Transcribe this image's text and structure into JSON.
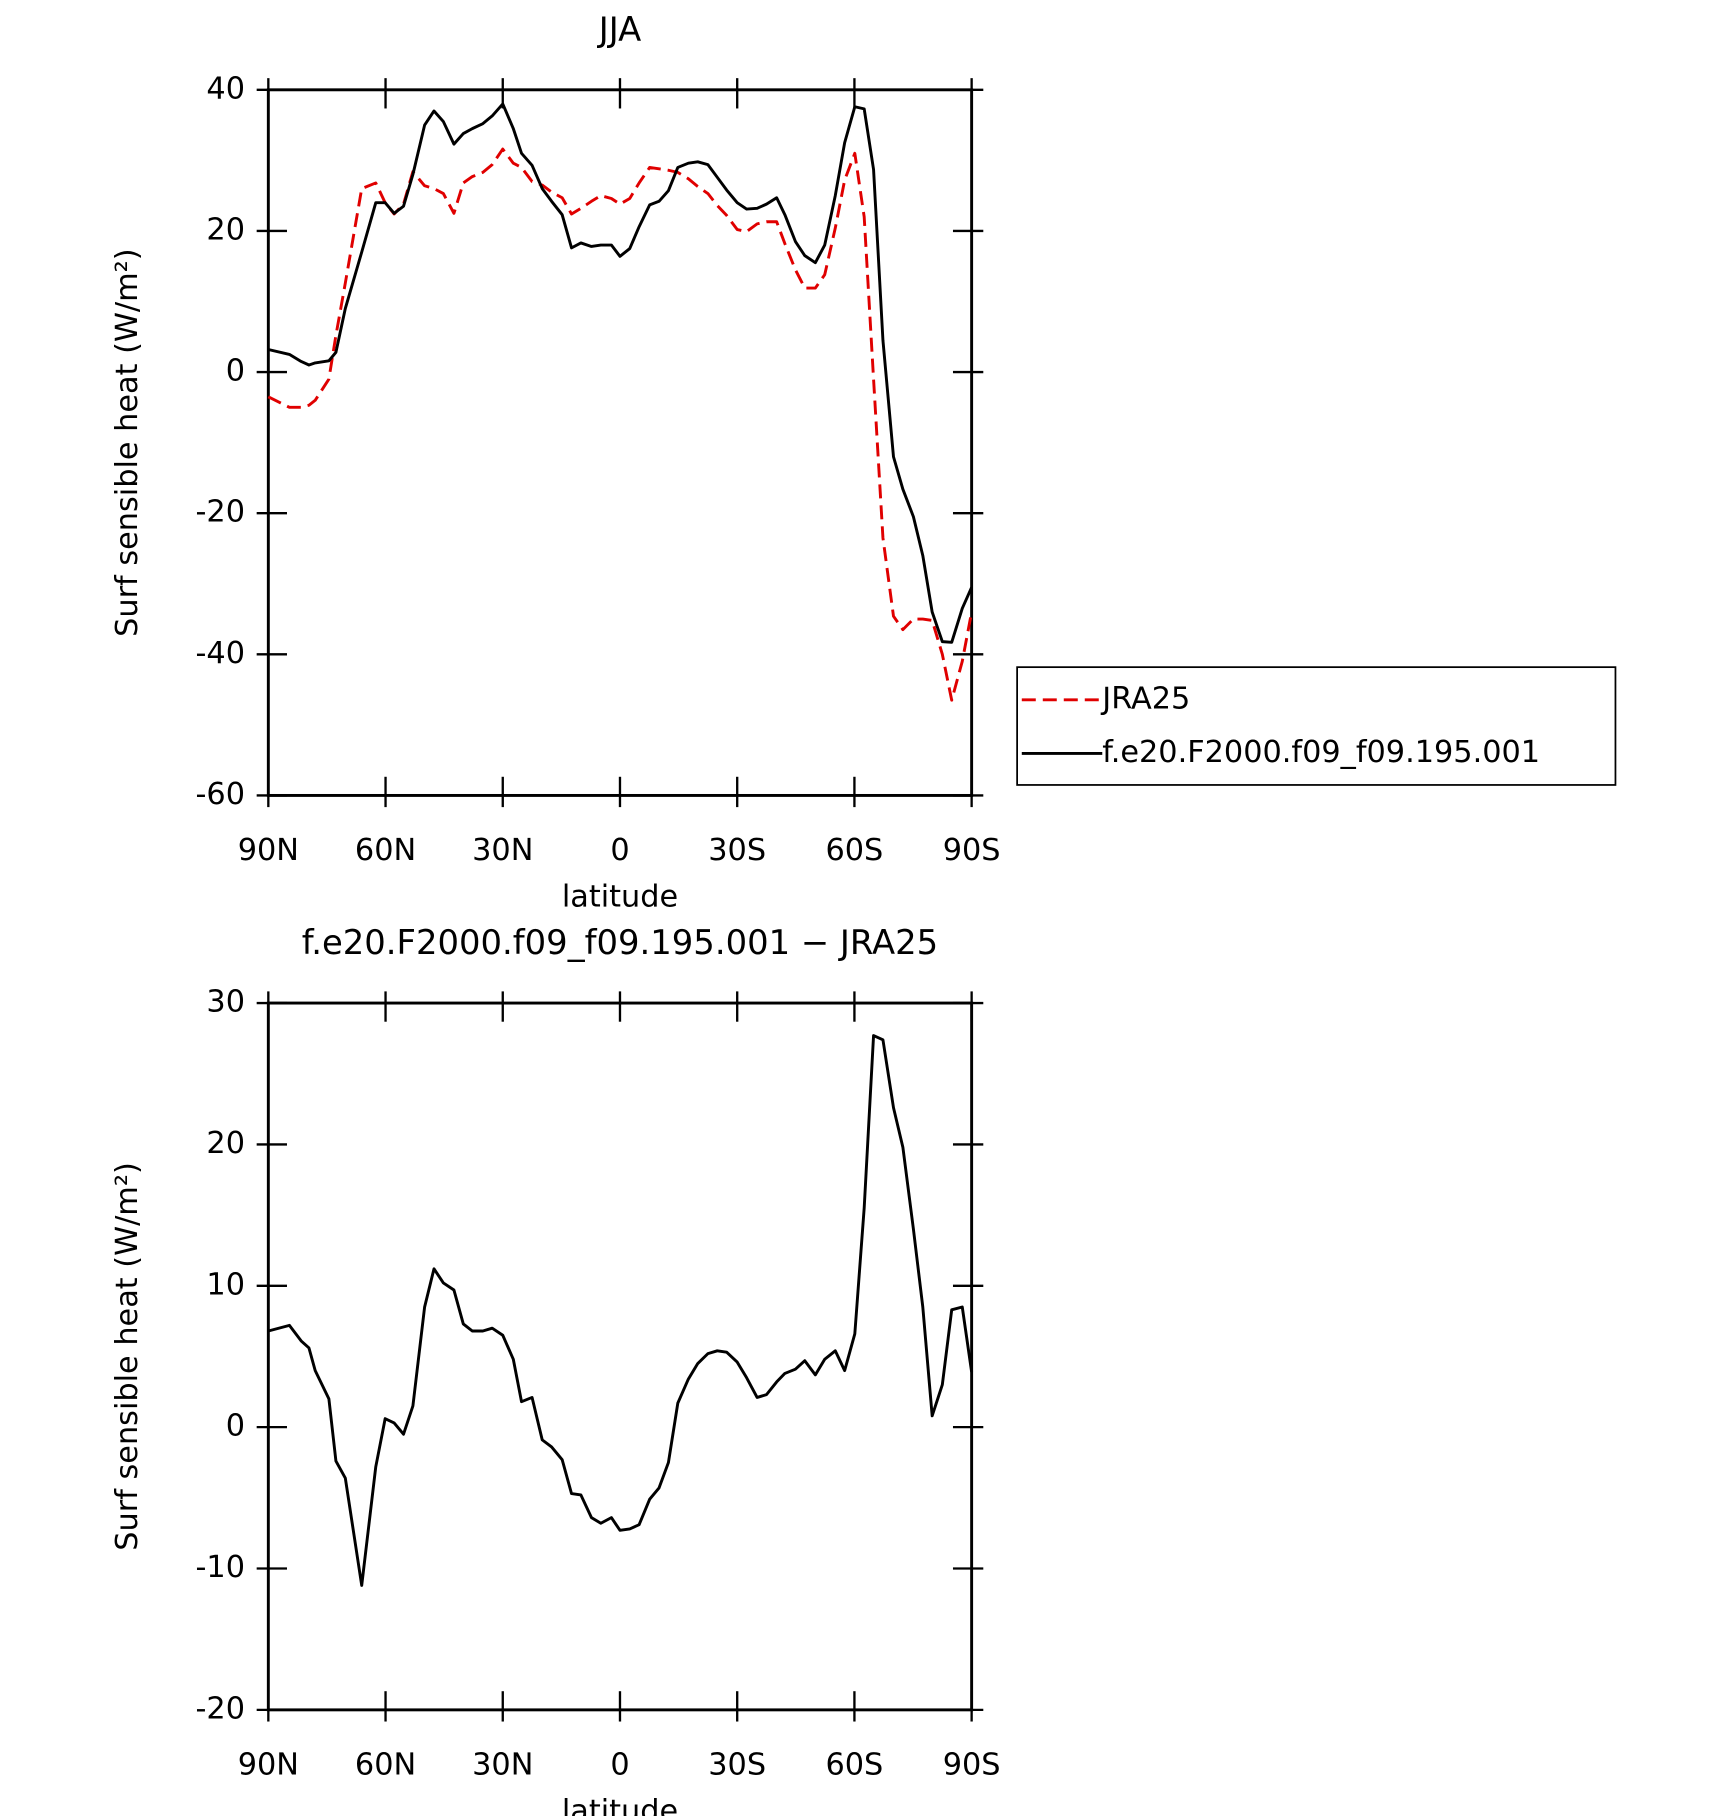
{
  "chart_data": [
    {
      "type": "line",
      "title": "JJA",
      "xlabel": "latitude",
      "ylabel": "Surf sensible heat (W/m²)",
      "x": [
        90,
        84.6,
        81.6,
        79.6,
        78,
        74.5,
        72.7,
        70.3,
        66.1,
        62.5,
        60.1,
        57.8,
        55.4,
        53,
        50,
        47.6,
        45.2,
        42.5,
        40.1,
        37.8,
        35.1,
        32.7,
        30,
        27.3,
        25.2,
        22.5,
        19.9,
        17.5,
        14.8,
        12.4,
        10,
        7.3,
        4.9,
        2.2,
        0,
        -2.5,
        -4.9,
        -7.6,
        -10,
        -12.4,
        -14.8,
        -17.5,
        -19.9,
        -22.5,
        -24.9,
        -27.3,
        -30,
        -32.4,
        -35.1,
        -37.5,
        -40.1,
        -42.2,
        -44.9,
        -47.3,
        -50,
        -52.4,
        -55.1,
        -57.5,
        -60.1,
        -62.5,
        -64.9,
        -67.3,
        -70,
        -72.4,
        -75.1,
        -77.5,
        -79.9,
        -82.5,
        -84.9,
        -87.6,
        -90
      ],
      "series": [
        {
          "name": "JRA25",
          "color": "#e00000",
          "dash": "dashed",
          "values": [
            -3.5,
            -5,
            -5,
            -4.7,
            -4,
            -1,
            5.2,
            12.6,
            26,
            26.8,
            24,
            22.4,
            23.8,
            28.4,
            26.4,
            26,
            25.3,
            22.5,
            26.8,
            27.7,
            28.3,
            29.4,
            31.6,
            29.6,
            29,
            27,
            26.5,
            25.5,
            24.7,
            22.4,
            23.2,
            24.2,
            25,
            24.6,
            23.8,
            24.6,
            26.8,
            29,
            28.8,
            28.6,
            28.3,
            27.4,
            26.3,
            25.3,
            23.6,
            22.2,
            20.2,
            19.9,
            21,
            21.3,
            21.3,
            18.2,
            14.5,
            11.9,
            11.9,
            13.8,
            20.4,
            27.2,
            31,
            22,
            -1,
            -23.5,
            -34.6,
            -36.5,
            -35,
            -35,
            -35.2,
            -40,
            -46.5,
            -41,
            -34
          ]
        },
        {
          "name": "f.e20.F2000.f09_f09.195.001",
          "color": "#000000",
          "dash": "solid",
          "values": [
            3.2,
            2.5,
            1.5,
            1,
            1.3,
            1.6,
            2.8,
            9,
            17,
            24,
            24,
            22.5,
            23.5,
            28,
            35,
            37,
            35.5,
            32.3,
            33.8,
            34.5,
            35.2,
            36.3,
            38,
            34.5,
            31,
            29.3,
            26,
            24.2,
            22.3,
            17.6,
            18.3,
            17.8,
            18,
            18,
            16.4,
            17.5,
            20.6,
            23.7,
            24.2,
            25.7,
            29,
            29.6,
            29.8,
            29.4,
            27.6,
            25.8,
            24,
            23.1,
            23.2,
            23.8,
            24.7,
            22.3,
            18.5,
            16.5,
            15.5,
            18,
            25,
            32.5,
            37.6,
            37.3,
            28.7,
            4.5,
            -12,
            -16.6,
            -20.5,
            -26,
            -34,
            -38.2,
            -38.3,
            -33.5,
            -30.5
          ]
        }
      ],
      "xlim": [
        90,
        -90
      ],
      "xticks": [
        {
          "value": 90,
          "label": "90N"
        },
        {
          "value": 60,
          "label": "60N"
        },
        {
          "value": 30,
          "label": "30N"
        },
        0,
        {
          "value": -30,
          "label": "30S"
        },
        {
          "value": -60,
          "label": "60S"
        },
        {
          "value": -90,
          "label": "90S"
        }
      ],
      "ylim": [
        -60,
        40
      ],
      "yticks": [
        -60,
        -40,
        -20,
        0,
        20,
        40
      ],
      "legend": "outside-right"
    },
    {
      "type": "line",
      "title": "f.e20.F2000.f09_f09.195.001 − JRA25",
      "xlabel": "latitude",
      "ylabel": "Surf sensible heat (W/m²)",
      "x": [
        90,
        84.6,
        81.6,
        79.6,
        78,
        74.5,
        72.7,
        70.3,
        66.1,
        62.5,
        60.1,
        57.8,
        55.4,
        53,
        50,
        47.6,
        45.2,
        42.5,
        40.1,
        37.8,
        35.1,
        32.7,
        30,
        27.3,
        25.2,
        22.5,
        19.9,
        17.5,
        14.8,
        12.4,
        10,
        7.3,
        4.9,
        2.2,
        0,
        -2.5,
        -4.9,
        -7.6,
        -10,
        -12.4,
        -14.8,
        -17.5,
        -19.9,
        -22.5,
        -24.9,
        -27.3,
        -30,
        -32.4,
        -35.1,
        -37.5,
        -40.1,
        -42.2,
        -44.9,
        -47.3,
        -50,
        -52.4,
        -55.1,
        -57.5,
        -60.1,
        -62.5,
        -64.9,
        -67.3,
        -70,
        -72.4,
        -75.1,
        -77.5,
        -79.9,
        -82.5,
        -84.9,
        -87.6,
        -90
      ],
      "series": [
        {
          "color": "#000000",
          "dash": "solid",
          "values": [
            6.8,
            7.2,
            6.1,
            5.6,
            4,
            2,
            -2.4,
            -3.6,
            -11.2,
            -2.8,
            0.6,
            0.3,
            -0.5,
            1.5,
            8.5,
            11.2,
            10.2,
            9.7,
            7.3,
            6.8,
            6.8,
            7,
            6.5,
            4.8,
            1.8,
            2.1,
            -0.9,
            -1.4,
            -2.3,
            -4.7,
            -4.8,
            -6.4,
            -6.8,
            -6.4,
            -7.3,
            -7.2,
            -6.9,
            -5.1,
            -4.3,
            -2.5,
            1.7,
            3.4,
            4.5,
            5.2,
            5.4,
            5.3,
            4.6,
            3.5,
            2.1,
            2.3,
            3.2,
            3.8,
            4.1,
            4.7,
            3.7,
            4.8,
            5.4,
            4,
            6.6,
            15.5,
            27.7,
            27.4,
            22.6,
            19.8,
            14,
            8.5,
            0.8,
            3,
            8.3,
            8.5,
            3.9
          ]
        }
      ],
      "xlim": [
        90,
        -90
      ],
      "xticks": [
        {
          "value": 90,
          "label": "90N"
        },
        {
          "value": 60,
          "label": "60N"
        },
        {
          "value": 30,
          "label": "30N"
        },
        0,
        {
          "value": -30,
          "label": "30S"
        },
        {
          "value": -60,
          "label": "60S"
        },
        {
          "value": -90,
          "label": "90S"
        }
      ],
      "ylim": [
        -20,
        30
      ],
      "yticks": [
        -20,
        -10,
        0,
        10,
        20,
        30
      ]
    }
  ]
}
